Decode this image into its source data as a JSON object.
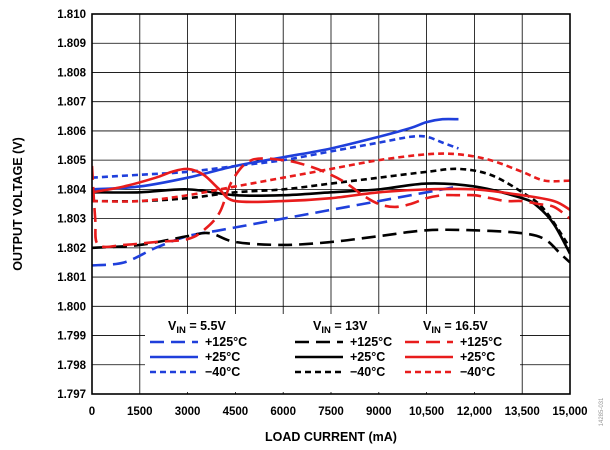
{
  "chart_data": {
    "type": "line",
    "xlabel": "LOAD CURRENT (mA)",
    "ylabel": "OUTPUT VOLTAGE (V)",
    "xlim": [
      0,
      15000
    ],
    "ylim": [
      1.797,
      1.81
    ],
    "x_ticks": [
      "0",
      "1500",
      "3000",
      "4500",
      "6000",
      "7500",
      "9000",
      "10,500",
      "12,000",
      "13,500",
      "15,000"
    ],
    "y_ticks": [
      "1.810",
      "1.809",
      "1.808",
      "1.807",
      "1.806",
      "1.805",
      "1.804",
      "1.803",
      "1.802",
      "1.801",
      "1.800",
      "1.799",
      "1.798",
      "1.797"
    ],
    "grid": true,
    "side_id": "14285-031",
    "legend": {
      "position": "bottom-center",
      "groups": [
        {
          "prefix": "V",
          "sub": "IN",
          "value": " = 5.5V"
        },
        {
          "prefix": "V",
          "sub": "IN",
          "value": " = 13V"
        },
        {
          "prefix": "V",
          "sub": "IN",
          "value": " = 16.5V"
        }
      ]
    },
    "series": [
      {
        "name": "+125°C",
        "group": 0,
        "color": "#1f3fdb",
        "dash": "long",
        "x": [
          0,
          1000,
          2000,
          3000,
          4000,
          5000,
          6000,
          7000,
          8000,
          9000,
          10000,
          11000,
          11500
        ],
        "y": [
          1.8014,
          1.8015,
          1.802,
          1.8024,
          1.8026,
          1.8028,
          1.803,
          1.8032,
          1.8034,
          1.8036,
          1.8038,
          1.804,
          1.8041
        ]
      },
      {
        "name": "+25°C",
        "group": 0,
        "color": "#1f3fdb",
        "dash": "solid",
        "x": [
          0,
          1500,
          3000,
          4500,
          6000,
          7500,
          9000,
          10000,
          10500,
          11000,
          11500
        ],
        "y": [
          1.804,
          1.8041,
          1.8044,
          1.8048,
          1.8051,
          1.8054,
          1.8058,
          1.8061,
          1.8063,
          1.8064,
          1.8064
        ]
      },
      {
        "name": "−40°C",
        "group": 0,
        "color": "#1f3fdb",
        "dash": "short",
        "x": [
          0,
          1500,
          3000,
          4500,
          6000,
          7500,
          9000,
          10000,
          10500,
          11000,
          11500
        ],
        "y": [
          1.8044,
          1.8045,
          1.8046,
          1.8048,
          1.805,
          1.8053,
          1.8056,
          1.8058,
          1.8058,
          1.8056,
          1.8054
        ]
      },
      {
        "name": "+125°C",
        "group": 1,
        "color": "#000000",
        "dash": "long",
        "x": [
          0,
          1500,
          3000,
          3700,
          4500,
          6000,
          7500,
          9000,
          10500,
          12000,
          13500,
          14200,
          14700,
          15000
        ],
        "y": [
          1.802,
          1.8021,
          1.8024,
          1.8025,
          1.8022,
          1.8021,
          1.8022,
          1.8024,
          1.8026,
          1.8026,
          1.8025,
          1.8023,
          1.8018,
          1.8015
        ]
      },
      {
        "name": "+25°C",
        "group": 1,
        "color": "#000000",
        "dash": "solid",
        "x": [
          0,
          1500,
          3000,
          4500,
          6000,
          7500,
          9000,
          10500,
          12000,
          13500,
          14000,
          14500,
          15000
        ],
        "y": [
          1.8039,
          1.8039,
          1.804,
          1.8038,
          1.8038,
          1.8039,
          1.804,
          1.8042,
          1.8041,
          1.8037,
          1.8034,
          1.8028,
          1.8018
        ]
      },
      {
        "name": "−40°C",
        "group": 1,
        "color": "#000000",
        "dash": "short",
        "x": [
          0,
          1500,
          3000,
          4500,
          6000,
          7500,
          9000,
          10500,
          11500,
          12500,
          13500,
          14200,
          15000
        ],
        "y": [
          1.8036,
          1.8036,
          1.8037,
          1.8039,
          1.804,
          1.8042,
          1.8044,
          1.8046,
          1.8047,
          1.8045,
          1.8039,
          1.8033,
          1.802
        ]
      },
      {
        "name": "+125°C",
        "group": 2,
        "color": "#e81c1c",
        "dash": "long",
        "x": [
          0,
          100,
          200,
          1000,
          2000,
          3000,
          3500,
          4000,
          4400,
          5000,
          6000,
          6800,
          7500,
          8000,
          8500,
          9000,
          9500,
          10000,
          10500,
          11000,
          11500,
          12000,
          12500,
          13000,
          13500,
          14000,
          14500,
          15000
        ],
        "y": [
          1.8048,
          1.803,
          1.8021,
          1.8021,
          1.8022,
          1.8023,
          1.8026,
          1.8032,
          1.8043,
          1.805,
          1.805,
          1.8048,
          1.8045,
          1.8042,
          1.8038,
          1.8035,
          1.8034,
          1.8035,
          1.8037,
          1.8038,
          1.8038,
          1.8038,
          1.8037,
          1.8036,
          1.8036,
          1.8035,
          1.8034,
          1.803
        ]
      },
      {
        "name": "+25°C",
        "group": 2,
        "color": "#e81c1c",
        "dash": "solid",
        "x": [
          0,
          1000,
          2000,
          2500,
          3000,
          3500,
          4000,
          4500,
          6000,
          7500,
          9000,
          10500,
          12000,
          13500,
          14500,
          15000
        ],
        "y": [
          1.8039,
          1.8041,
          1.8044,
          1.8046,
          1.8047,
          1.8045,
          1.804,
          1.8036,
          1.8036,
          1.8037,
          1.8039,
          1.804,
          1.804,
          1.8038,
          1.8036,
          1.8033
        ]
      },
      {
        "name": "−40°C",
        "group": 2,
        "color": "#e81c1c",
        "dash": "short",
        "x": [
          0,
          1500,
          3000,
          4500,
          6000,
          7500,
          9000,
          10500,
          11500,
          12500,
          13500,
          14200,
          15000
        ],
        "y": [
          1.8036,
          1.8036,
          1.8038,
          1.8041,
          1.8044,
          1.8047,
          1.805,
          1.8052,
          1.8052,
          1.805,
          1.8046,
          1.8043,
          1.8043
        ]
      }
    ]
  }
}
